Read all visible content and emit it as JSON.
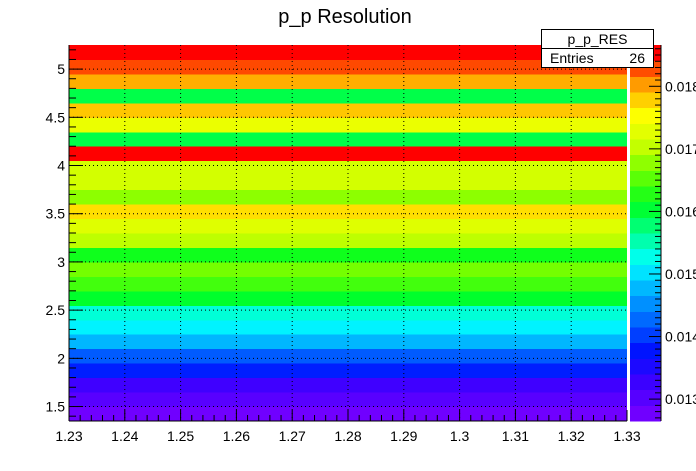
{
  "chart_data": {
    "type": "heatmap",
    "title": "p_p Resolution",
    "xlabel": "",
    "ylabel": "",
    "xlim": [
      1.23,
      1.33
    ],
    "ylim": [
      1.35,
      5.25
    ],
    "x_tick_labels": [
      "1.23",
      "1.24",
      "1.25",
      "1.26",
      "1.27",
      "1.28",
      "1.29",
      "1.3",
      "1.31",
      "1.32",
      "1.33"
    ],
    "y_tick_labels": [
      "1.5",
      "2",
      "2.5",
      "3",
      "3.5",
      "4",
      "4.5",
      "5"
    ],
    "z_range": [
      0.01265,
      0.01866
    ],
    "z_tick_labels": [
      "0.013",
      "0.014",
      "0.015",
      "0.016",
      "0.017",
      "0.018"
    ],
    "grid": true,
    "palette": "rainbow",
    "y_bins": [
      {
        "y": [
          1.35,
          1.5
        ],
        "z": 0.0127
      },
      {
        "y": [
          1.5,
          1.65
        ],
        "z": 0.01295
      },
      {
        "y": [
          1.65,
          1.8
        ],
        "z": 0.01325
      },
      {
        "y": [
          1.8,
          1.95
        ],
        "z": 0.0138
      },
      {
        "y": [
          1.95,
          2.1
        ],
        "z": 0.0142
      },
      {
        "y": [
          2.1,
          2.25
        ],
        "z": 0.0148
      },
      {
        "y": [
          2.25,
          2.4
        ],
        "z": 0.0151
      },
      {
        "y": [
          2.4,
          2.55
        ],
        "z": 0.0154
      },
      {
        "y": [
          2.55,
          2.7
        ],
        "z": 0.0161
      },
      {
        "y": [
          2.7,
          2.85
        ],
        "z": 0.0164
      },
      {
        "y": [
          2.85,
          3.0
        ],
        "z": 0.0167
      },
      {
        "y": [
          3.0,
          3.15
        ],
        "z": 0.0162
      },
      {
        "y": [
          3.15,
          3.3
        ],
        "z": 0.017
      },
      {
        "y": [
          3.3,
          3.45
        ],
        "z": 0.0173
      },
      {
        "y": [
          3.45,
          3.6
        ],
        "z": 0.0177
      },
      {
        "y": [
          3.6,
          3.75
        ],
        "z": 0.0168
      },
      {
        "y": [
          3.75,
          3.9
        ],
        "z": 0.0171
      },
      {
        "y": [
          3.9,
          4.05
        ],
        "z": 0.0171
      },
      {
        "y": [
          4.05,
          4.2
        ],
        "z": 0.01855
      },
      {
        "y": [
          4.2,
          4.35
        ],
        "z": 0.0159
      },
      {
        "y": [
          4.35,
          4.5
        ],
        "z": 0.0174
      },
      {
        "y": [
          4.5,
          4.65
        ],
        "z": 0.0179
      },
      {
        "y": [
          4.65,
          4.8
        ],
        "z": 0.016
      },
      {
        "y": [
          4.8,
          4.95
        ],
        "z": 0.018
      },
      {
        "y": [
          4.95,
          5.1
        ],
        "z": 0.0183
      },
      {
        "y": [
          5.1,
          5.25
        ],
        "z": 0.0187
      }
    ]
  },
  "stats_box": {
    "title": "p_p_RES",
    "entries_label": "Entries",
    "entries_value": "26"
  }
}
